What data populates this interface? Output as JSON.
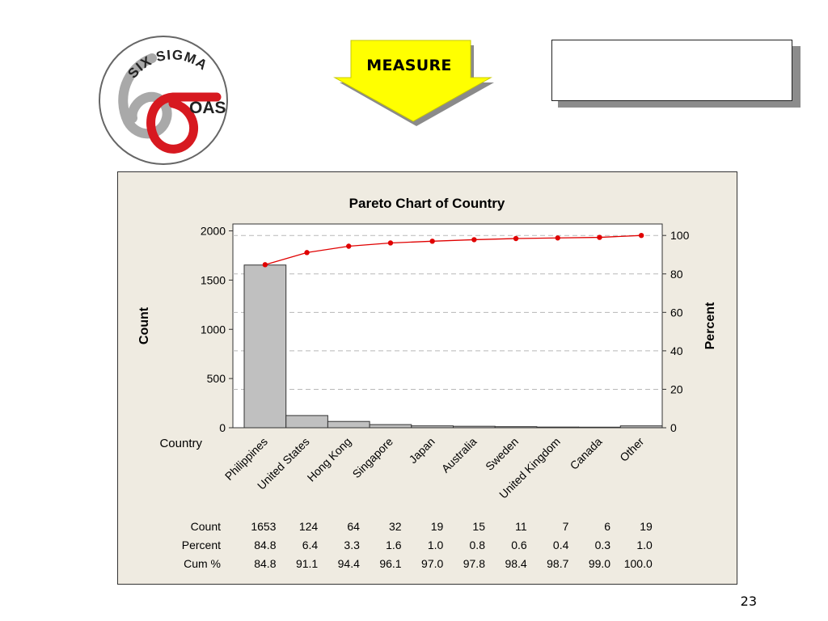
{
  "slide": {
    "logo_text_top": "SIX SIGMA",
    "logo_text_side": "OAS",
    "arrow_label": "MEASURE",
    "page_number": "23",
    "colors": {
      "arrow_fill": "#ffff00",
      "logo_red": "#d71920",
      "logo_gray": "#a9a9a9",
      "panel_bg": "#efebe1",
      "bar_fill": "#c0c0c0",
      "line_color": "#e00000"
    }
  },
  "chart_data": {
    "type": "bar",
    "title": "Pareto Chart of Country",
    "ylabel": "Count",
    "y2label": "Percent",
    "xlabel": "Country",
    "ylim": [
      0,
      2070
    ],
    "y2lim": [
      0,
      100
    ],
    "yticks": [
      0,
      500,
      1000,
      1500,
      2000
    ],
    "y2ticks": [
      0,
      20,
      40,
      60,
      80,
      100
    ],
    "grid": "dashed, horizontal at percent ticks",
    "categories": [
      "Philippines",
      "United States",
      "Hong Kong",
      "Singapore",
      "Japan",
      "Australia",
      "Sweden",
      "United Kingdom",
      "Canada",
      "Other"
    ],
    "series": [
      {
        "name": "Count",
        "values": [
          1653,
          124,
          64,
          32,
          19,
          15,
          11,
          7,
          6,
          19
        ]
      },
      {
        "name": "Cum %",
        "values": [
          84.8,
          91.1,
          94.4,
          96.1,
          97.0,
          97.8,
          98.4,
          98.7,
          99.0,
          100.0
        ]
      }
    ],
    "table": {
      "row_labels": [
        "Count",
        "Percent",
        "Cum %"
      ],
      "rows": [
        [
          "1653",
          "124",
          "64",
          "32",
          "19",
          "15",
          "11",
          "7",
          "6",
          "19"
        ],
        [
          "84.8",
          "6.4",
          "3.3",
          "1.6",
          "1.0",
          "0.8",
          "0.6",
          "0.4",
          "0.3",
          "1.0"
        ],
        [
          "84.8",
          "91.1",
          "94.4",
          "96.1",
          "97.0",
          "97.8",
          "98.4",
          "98.7",
          "99.0",
          "100.0"
        ]
      ]
    }
  }
}
